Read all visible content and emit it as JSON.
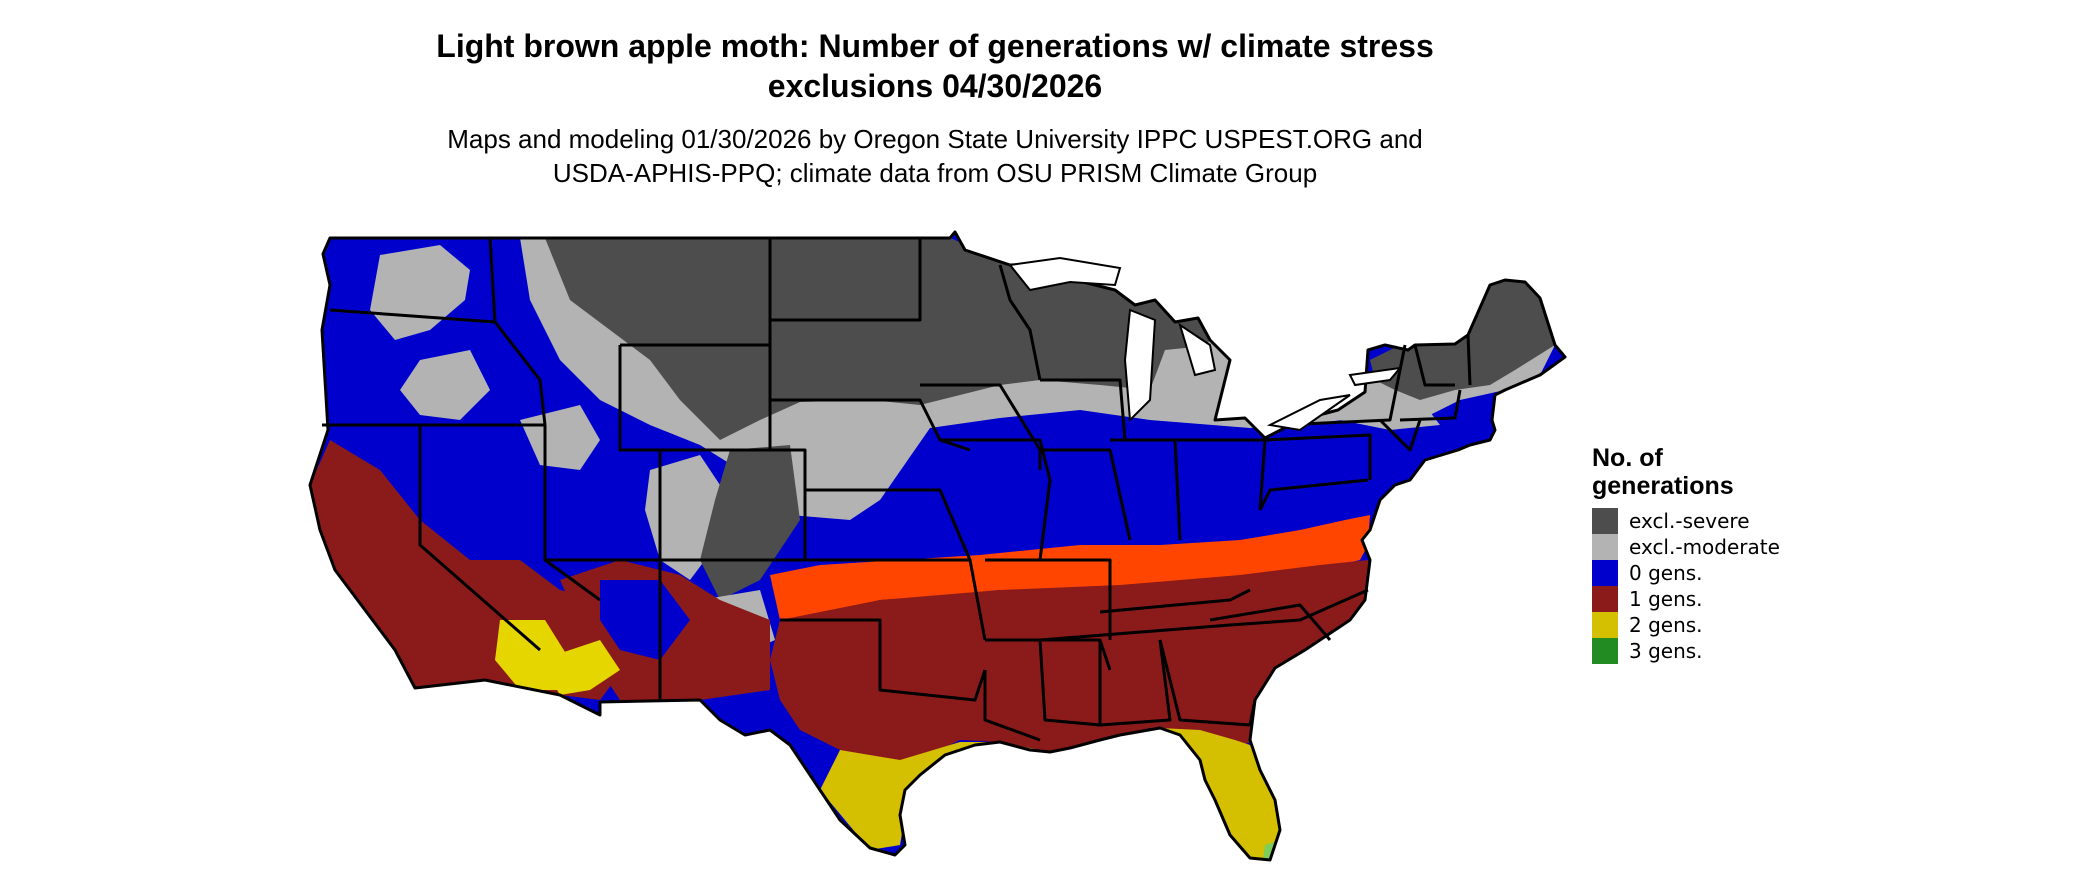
{
  "title": {
    "line1": "Light brown apple moth: Number of generations w/ climate stress",
    "line2": "exclusions 04/30/2026"
  },
  "subtitle": {
    "line1": "Maps and modeling 01/30/2026 by Oregon State University IPPC USPEST.ORG and",
    "line2": "USDA-APHIS-PPQ; climate data from OSU PRISM Climate Group"
  },
  "legend": {
    "title_line1": "No. of",
    "title_line2": "generations",
    "items": [
      {
        "label": "excl.-severe",
        "color": "#4d4d4d"
      },
      {
        "label": "excl.-moderate",
        "color": "#b3b3b3"
      },
      {
        "label": "0 gens.",
        "color": "#0000cd"
      },
      {
        "label": "1 gens.",
        "color": "#8b1a1a"
      },
      {
        "label": "2 gens.",
        "color": "#d4c000"
      },
      {
        "label": "3 gens.",
        "color": "#228b22"
      }
    ]
  },
  "colors": {
    "zone_orange": "#ff4500",
    "zone_yellow": "#e6d600",
    "zone_light_green": "#7ccd5a",
    "state_border": "#000000"
  }
}
